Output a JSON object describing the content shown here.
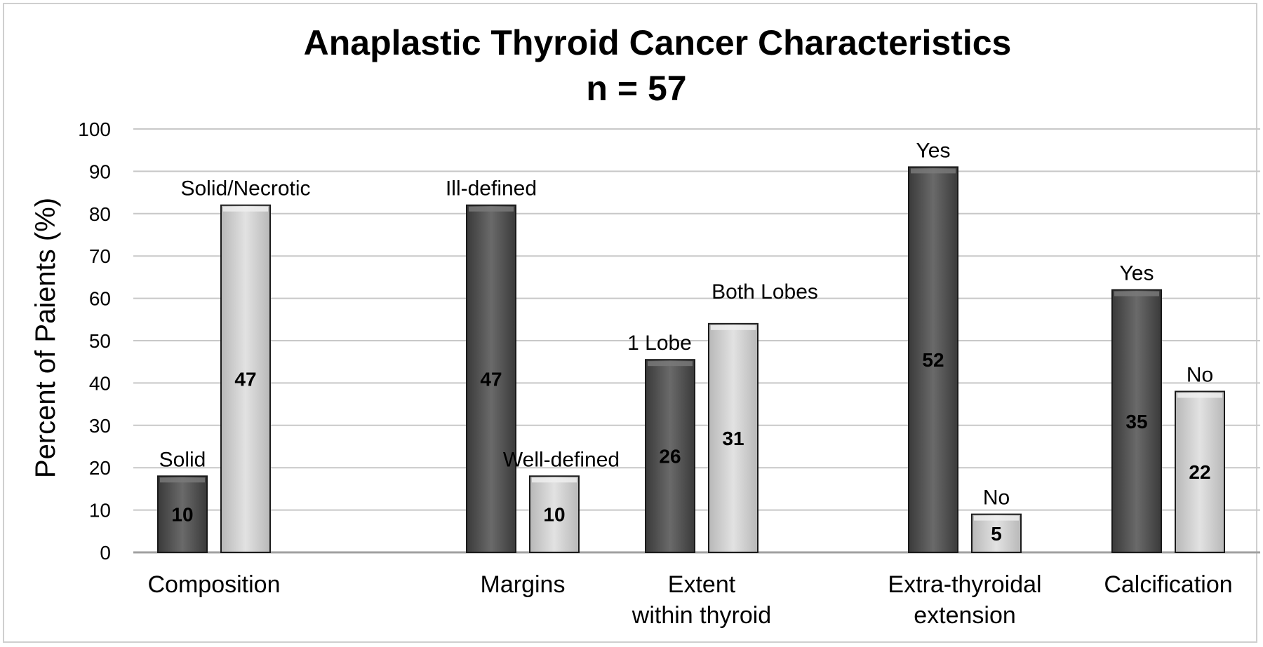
{
  "colors": {
    "dark_bar": "#555555",
    "light_bar": "#cfcfcf",
    "grid": "#c8c8c8",
    "axis": "#a0a0a0"
  },
  "chart_data": {
    "type": "bar",
    "title": "Anaplastic Thyroid Cancer Characteristics",
    "subtitle": "n = 57",
    "ylabel": "Percent of Paients (%)",
    "ylim": [
      0,
      100
    ],
    "yticks": [
      0,
      10,
      20,
      30,
      40,
      50,
      60,
      70,
      80,
      90,
      100
    ],
    "grid": true,
    "groups": [
      {
        "category": [
          "Composition"
        ],
        "bars": [
          {
            "label": "Solid",
            "percent": 18,
            "count": "10",
            "shade": "dark"
          },
          {
            "label": "Solid/Necrotic",
            "percent": 82,
            "count": "47",
            "shade": "light"
          }
        ]
      },
      {
        "category": [
          "Margins"
        ],
        "bars": [
          {
            "label": "Ill-defined",
            "percent": 82,
            "count": "47",
            "shade": "dark"
          },
          {
            "label": "Well-defined",
            "percent": 18,
            "count": "10",
            "shade": "light"
          }
        ]
      },
      {
        "category": [
          "Extent",
          "within thyroid"
        ],
        "bars": [
          {
            "label": "1 Lobe",
            "percent": 45.5,
            "count": "26",
            "shade": "dark"
          },
          {
            "label": "Both Lobes",
            "percent": 54,
            "count": "31",
            "shade": "light"
          }
        ]
      },
      {
        "category": [
          "Extra-thyroidal",
          "extension"
        ],
        "bars": [
          {
            "label": "Yes",
            "percent": 91,
            "count": "52",
            "shade": "dark"
          },
          {
            "label": "No",
            "percent": 9,
            "count": "5",
            "shade": "light"
          }
        ]
      },
      {
        "category": [
          "Calcification"
        ],
        "bars": [
          {
            "label": "Yes",
            "percent": 62,
            "count": "35",
            "shade": "dark"
          },
          {
            "label": "No",
            "percent": 38,
            "count": "22",
            "shade": "light"
          }
        ]
      }
    ]
  }
}
